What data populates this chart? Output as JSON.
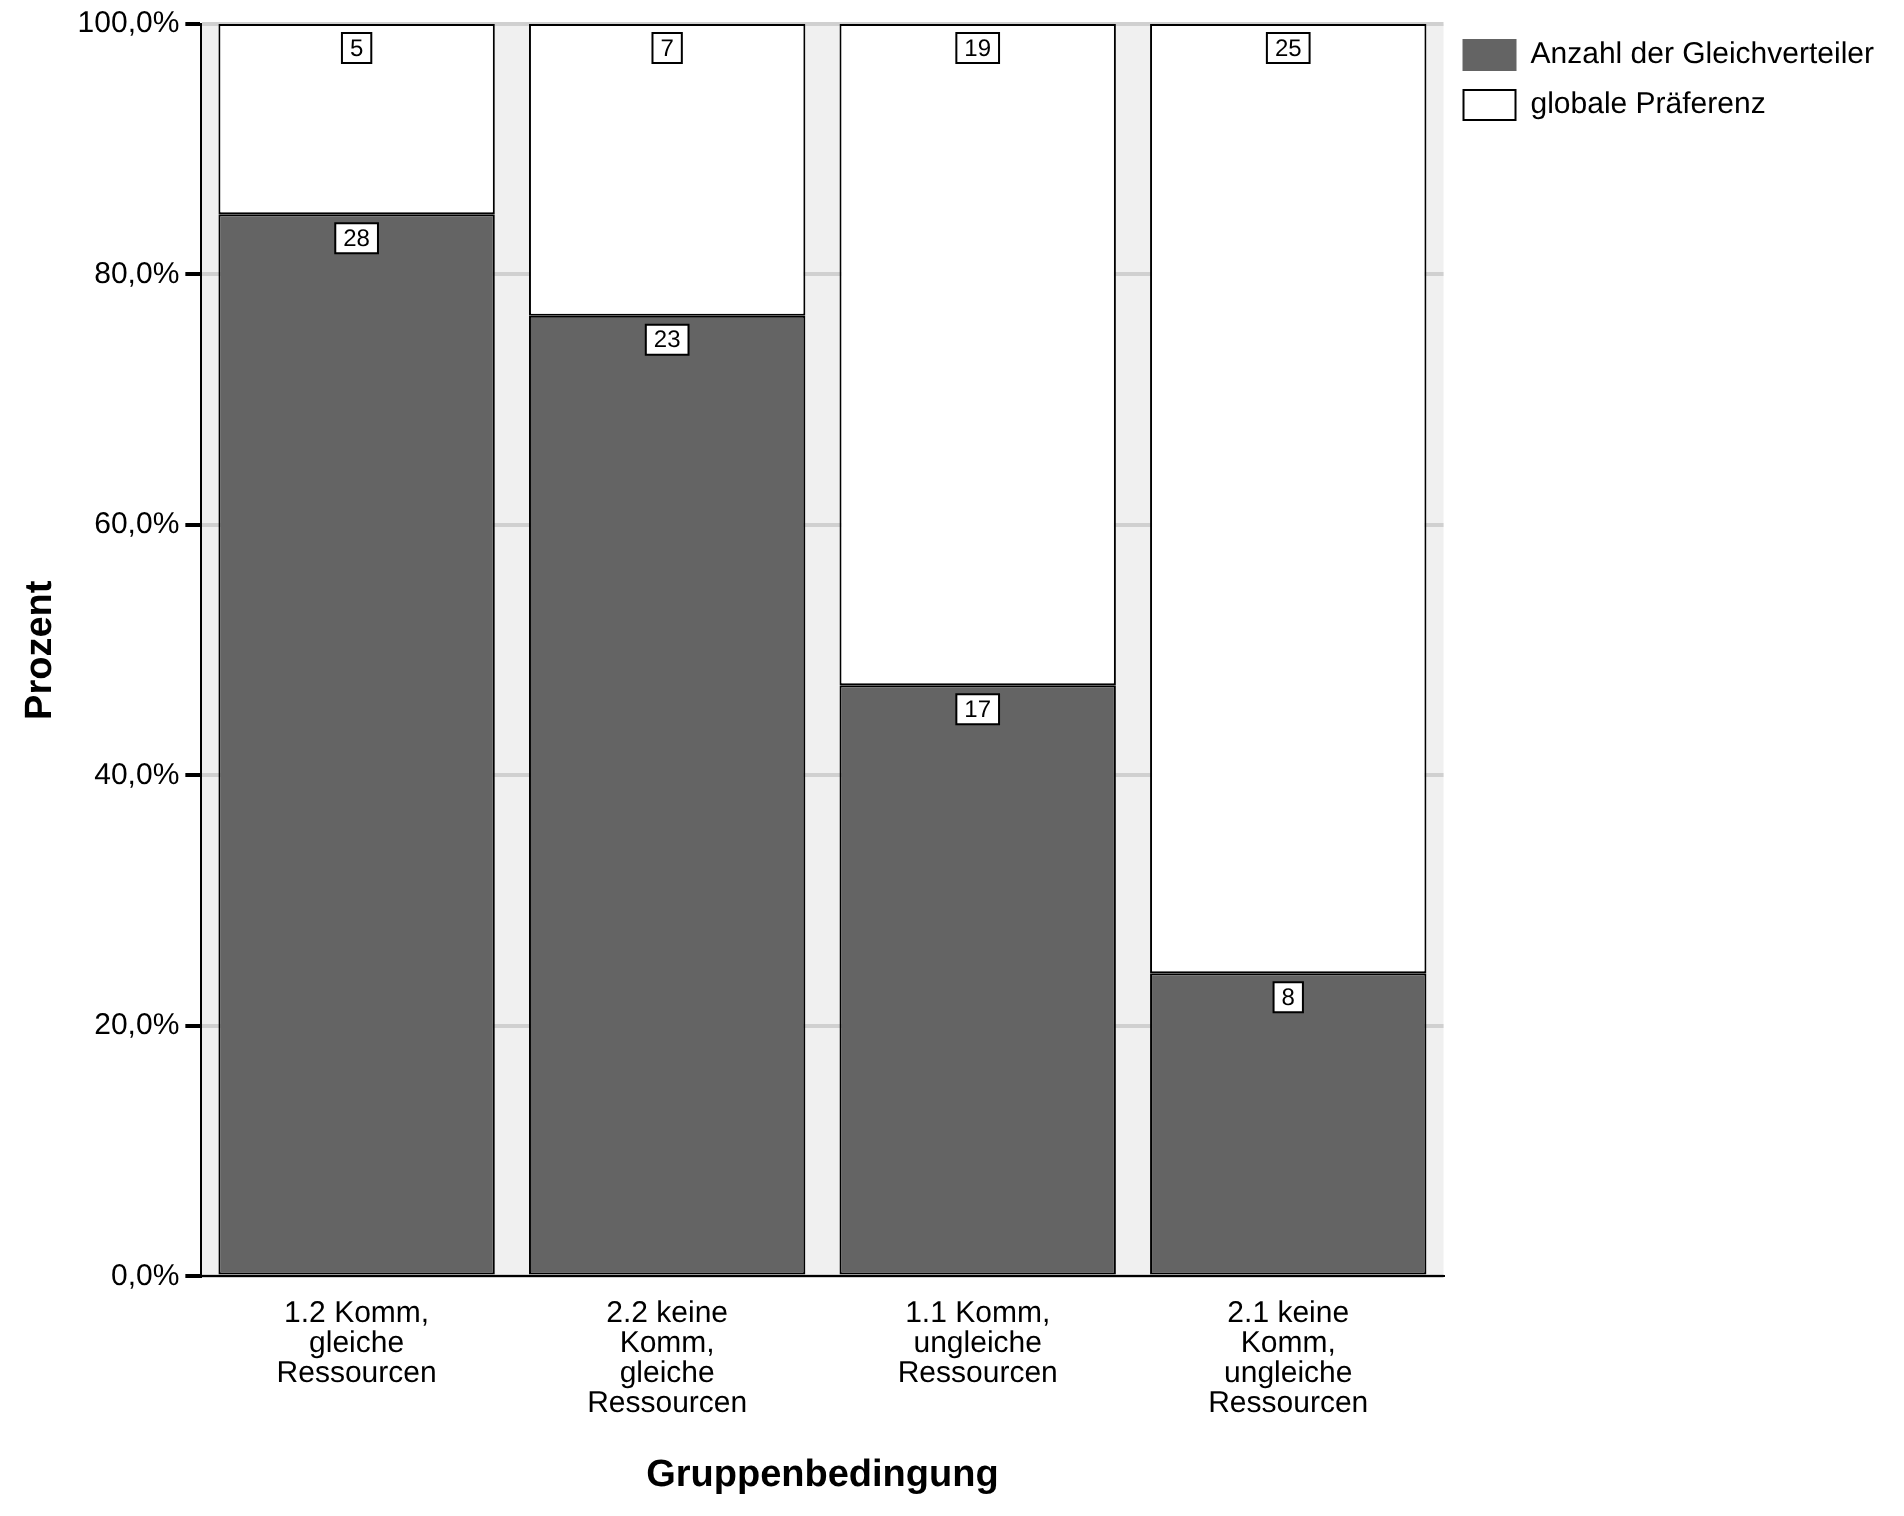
{
  "chart_data": {
    "type": "bar",
    "stacked": true,
    "xlabel": "Gruppenbedingung",
    "ylabel": "Prozent",
    "categories": [
      "1.2 Komm,\ngleiche\nRessourcen",
      "2.2 keine\nKomm,\ngleiche\nRessourcen",
      "1.1 Komm,\nungleiche\nRessourcen",
      "2.1 keine\nKomm,\nungleiche\nRessourcen"
    ],
    "series": [
      {
        "name": "Anzahl der Gleichverteiler",
        "color": "#646464",
        "values": [
          84.8,
          76.7,
          47.2,
          24.2
        ]
      },
      {
        "name": "globale Präferenz",
        "color": "#ffffff",
        "values": [
          15.2,
          23.3,
          52.8,
          75.8
        ]
      }
    ],
    "annotations": [
      {
        "text": "28",
        "x": "1.2 Komm,\ngleiche\nRessourcen",
        "y": 84.8
      },
      {
        "text": "23",
        "x": "2.2 keine\nKomm,\ngleiche\nRessourcen",
        "y": 76.7
      },
      {
        "text": "17",
        "x": "1.1 Komm,\nungleiche\nRessourcen",
        "y": 47.2
      },
      {
        "text": "8",
        "x": "2.1 keine\nKomm,\nungleiche\nRessourcen",
        "y": 24.2
      },
      {
        "text": "5",
        "x": "1.2 Komm,\ngleiche\nRessourcen",
        "y": 100
      },
      {
        "text": "7",
        "x": "2.2 keine\nKomm,\ngleiche\nRessourcen",
        "y": 100
      },
      {
        "text": "19",
        "x": "1.1 Komm,\nungleiche\nRessourcen",
        "y": 100
      },
      {
        "text": "25",
        "x": "2.1 keine\nKomm,\nungleiche\nRessourcen",
        "y": 100
      }
    ],
    "ylim": [
      0,
      100
    ],
    "yticks": [
      {
        "value": 0,
        "label": "0,0%"
      },
      {
        "value": 20,
        "label": "20,0%"
      },
      {
        "value": 40,
        "label": "40,0%"
      },
      {
        "value": 60,
        "label": "60,0%"
      },
      {
        "value": 80,
        "label": "80,0%"
      },
      {
        "value": 100,
        "label": "100,0%"
      }
    ],
    "grid": "y",
    "legend": "top right"
  }
}
